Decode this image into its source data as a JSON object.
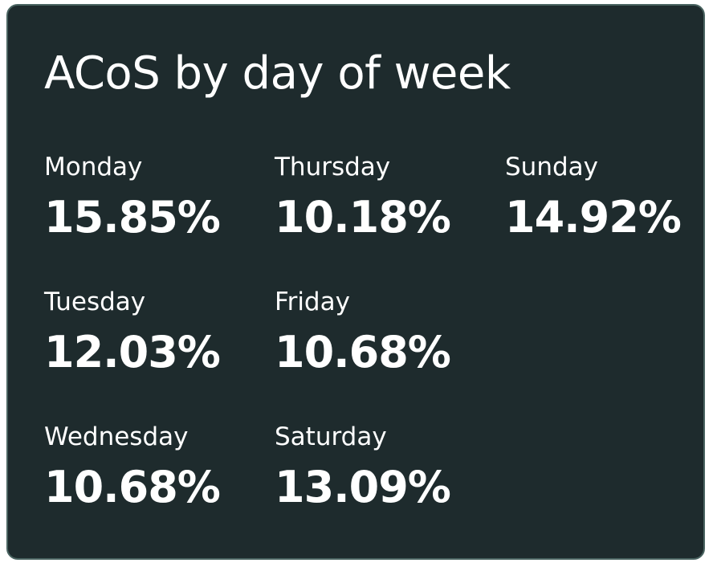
{
  "title": "ACoS by day of week",
  "stats": [
    {
      "label": "Monday",
      "value": "15.85%"
    },
    {
      "label": "Tuesday",
      "value": "12.03%"
    },
    {
      "label": "Wednesday",
      "value": "10.68%"
    },
    {
      "label": "Thursday",
      "value": "10.18%"
    },
    {
      "label": "Friday",
      "value": "10.68%"
    },
    {
      "label": "Saturday",
      "value": "13.09%"
    },
    {
      "label": "Sunday",
      "value": "14.92%"
    }
  ]
}
